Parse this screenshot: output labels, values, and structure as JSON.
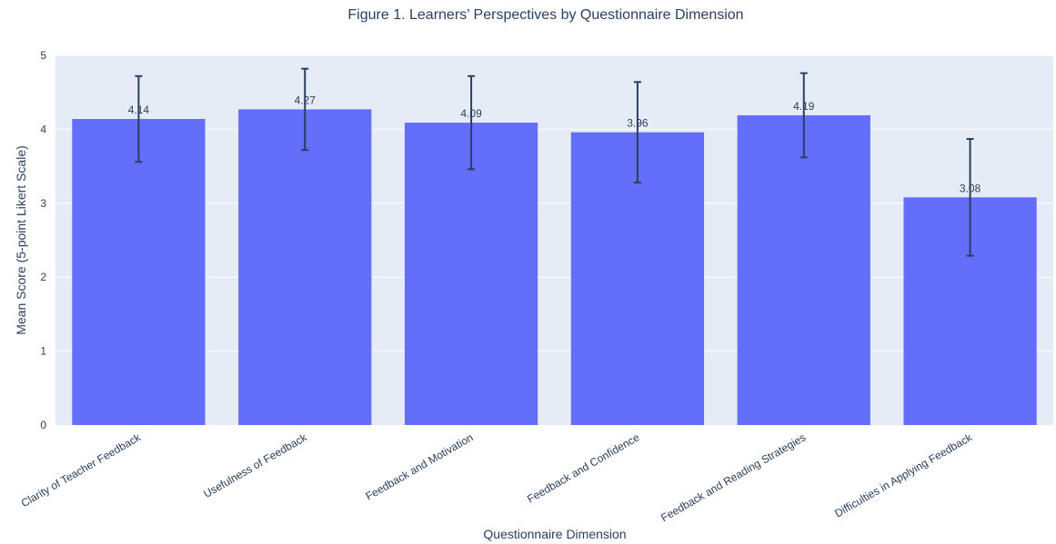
{
  "chart_data": {
    "type": "bar",
    "title": "Figure 1. Learners’ Perspectives by Questionnaire Dimension",
    "xlabel": "Questionnaire Dimension",
    "ylabel": "Mean Score (5-point Likert Scale)",
    "categories": [
      "Clarity of Teacher Feedback",
      "Usefulness of Feedback",
      "Feedback and Motivation",
      "Feedback and Confidence",
      "Feedback and Reading Strategies",
      "Difficulties in Applying Feedback"
    ],
    "values": [
      4.14,
      4.27,
      4.09,
      3.96,
      4.19,
      3.08
    ],
    "value_labels": [
      "4.14",
      "4.27",
      "4.09",
      "3.96",
      "4.19",
      "3.08"
    ],
    "error": [
      0.58,
      0.55,
      0.63,
      0.68,
      0.57,
      0.79
    ],
    "ylim": [
      0,
      5
    ],
    "yticks": [
      "0",
      "1",
      "2",
      "3",
      "4",
      "5"
    ],
    "grid": true,
    "colors": {
      "bar": "#636efa",
      "plot_bg": "#e5ecf6",
      "grid": "#ffffff",
      "error_bar": "#2a3f5f",
      "text": "#2a3f5f"
    }
  }
}
